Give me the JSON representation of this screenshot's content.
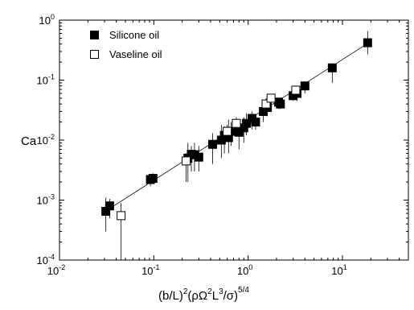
{
  "chart_data": {
    "type": "scatter",
    "xscale": "log",
    "yscale": "log",
    "xlim": [
      0.01,
      50
    ],
    "ylim": [
      0.0001,
      1
    ],
    "xlabel": "",
    "ylabel": "Ca",
    "x_ticks": [
      {
        "value": 0.01,
        "base": "10",
        "exp": "-2"
      },
      {
        "value": 0.1,
        "base": "10",
        "exp": "-1"
      },
      {
        "value": 1,
        "base": "10",
        "exp": "0"
      },
      {
        "value": 10,
        "base": "10",
        "exp": "1"
      }
    ],
    "y_ticks": [
      {
        "value": 0.0001,
        "base": "10",
        "exp": "-4"
      },
      {
        "value": 0.001,
        "base": "10",
        "exp": "-3"
      },
      {
        "value": 0.01,
        "base": "10",
        "exp": "-2"
      },
      {
        "value": 0.1,
        "base": "10",
        "exp": "-1"
      },
      {
        "value": 1,
        "base": "10",
        "exp": "0"
      }
    ],
    "xlabel_parts": {
      "a": "(b/L)",
      "a_sup": "2",
      "b": "(ρΩ",
      "b_sup": "2",
      "c": "L",
      "c_sup": "3",
      "d": "/σ)",
      "d_sup": "5/4"
    },
    "legend_position": "top-left",
    "fit_line": {
      "x": [
        0.032,
        19
      ],
      "y": [
        0.00068,
        0.42
      ]
    },
    "series": [
      {
        "name": "Silicone oil",
        "marker": "filled-square",
        "color": "#000000",
        "points": [
          {
            "x": 0.031,
            "y": 0.00065,
            "ylo": 0.0003,
            "yhi": 0.0011
          },
          {
            "x": 0.034,
            "y": 0.0008,
            "ylo": 0.0005,
            "yhi": 0.00105
          },
          {
            "x": 0.092,
            "y": 0.0022,
            "ylo": 0.0017,
            "yhi": 0.0027
          },
          {
            "x": 0.098,
            "y": 0.0023,
            "ylo": 0.0019,
            "yhi": 0.0028
          },
          {
            "x": 0.23,
            "y": 0.005,
            "ylo": 0.002,
            "yhi": 0.009
          },
          {
            "x": 0.25,
            "y": 0.0058,
            "ylo": 0.003,
            "yhi": 0.008
          },
          {
            "x": 0.27,
            "y": 0.0057,
            "ylo": 0.003,
            "yhi": 0.009
          },
          {
            "x": 0.3,
            "y": 0.0052,
            "ylo": 0.003,
            "yhi": 0.008
          },
          {
            "x": 0.42,
            "y": 0.0085,
            "ylo": 0.004,
            "yhi": 0.013
          },
          {
            "x": 0.52,
            "y": 0.01,
            "ylo": 0.005,
            "yhi": 0.018
          },
          {
            "x": 0.56,
            "y": 0.012,
            "ylo": 0.006,
            "yhi": 0.017
          },
          {
            "x": 0.62,
            "y": 0.011,
            "ylo": 0.006,
            "yhi": 0.022
          },
          {
            "x": 0.66,
            "y": 0.014,
            "ylo": 0.008,
            "yhi": 0.02
          },
          {
            "x": 0.8,
            "y": 0.0135,
            "ylo": 0.007,
            "yhi": 0.02
          },
          {
            "x": 0.9,
            "y": 0.016,
            "ylo": 0.009,
            "yhi": 0.024
          },
          {
            "x": 0.96,
            "y": 0.019,
            "ylo": 0.012,
            "yhi": 0.028
          },
          {
            "x": 1.1,
            "y": 0.023,
            "ylo": 0.015,
            "yhi": 0.03
          },
          {
            "x": 1.2,
            "y": 0.02,
            "ylo": 0.015,
            "yhi": 0.026
          },
          {
            "x": 1.45,
            "y": 0.03,
            "ylo": 0.02,
            "yhi": 0.037
          },
          {
            "x": 1.6,
            "y": 0.035,
            "ylo": 0.025,
            "yhi": 0.04
          },
          {
            "x": 2.1,
            "y": 0.043,
            "ylo": 0.033,
            "yhi": 0.05
          },
          {
            "x": 2.2,
            "y": 0.04,
            "ylo": 0.033,
            "yhi": 0.05
          },
          {
            "x": 3.0,
            "y": 0.055,
            "ylo": 0.045,
            "yhi": 0.065
          },
          {
            "x": 3.3,
            "y": 0.06,
            "ylo": 0.045,
            "yhi": 0.075
          },
          {
            "x": 4.0,
            "y": 0.08,
            "ylo": 0.06,
            "yhi": 0.09
          },
          {
            "x": 7.8,
            "y": 0.16,
            "ylo": 0.09,
            "yhi": 0.19
          },
          {
            "x": 18.5,
            "y": 0.42,
            "ylo": 0.27,
            "yhi": 0.65
          }
        ]
      },
      {
        "name": "Vaseline oil",
        "marker": "open-square",
        "color": "#000000",
        "points": [
          {
            "x": 0.045,
            "y": 0.00055,
            "ylo": 0.0001,
            "yhi": 0.0009
          },
          {
            "x": 0.22,
            "y": 0.0045,
            "ylo": 0.002,
            "yhi": 0.006
          },
          {
            "x": 0.6,
            "y": 0.014,
            "ylo": 0.01,
            "yhi": 0.018
          },
          {
            "x": 0.75,
            "y": 0.019,
            "ylo": 0.014,
            "yhi": 0.024
          },
          {
            "x": 1.55,
            "y": 0.04,
            "ylo": 0.03,
            "yhi": 0.05
          },
          {
            "x": 1.75,
            "y": 0.05,
            "ylo": 0.038,
            "yhi": 0.058
          },
          {
            "x": 3.2,
            "y": 0.068,
            "ylo": 0.055,
            "yhi": 0.08
          }
        ]
      }
    ]
  }
}
